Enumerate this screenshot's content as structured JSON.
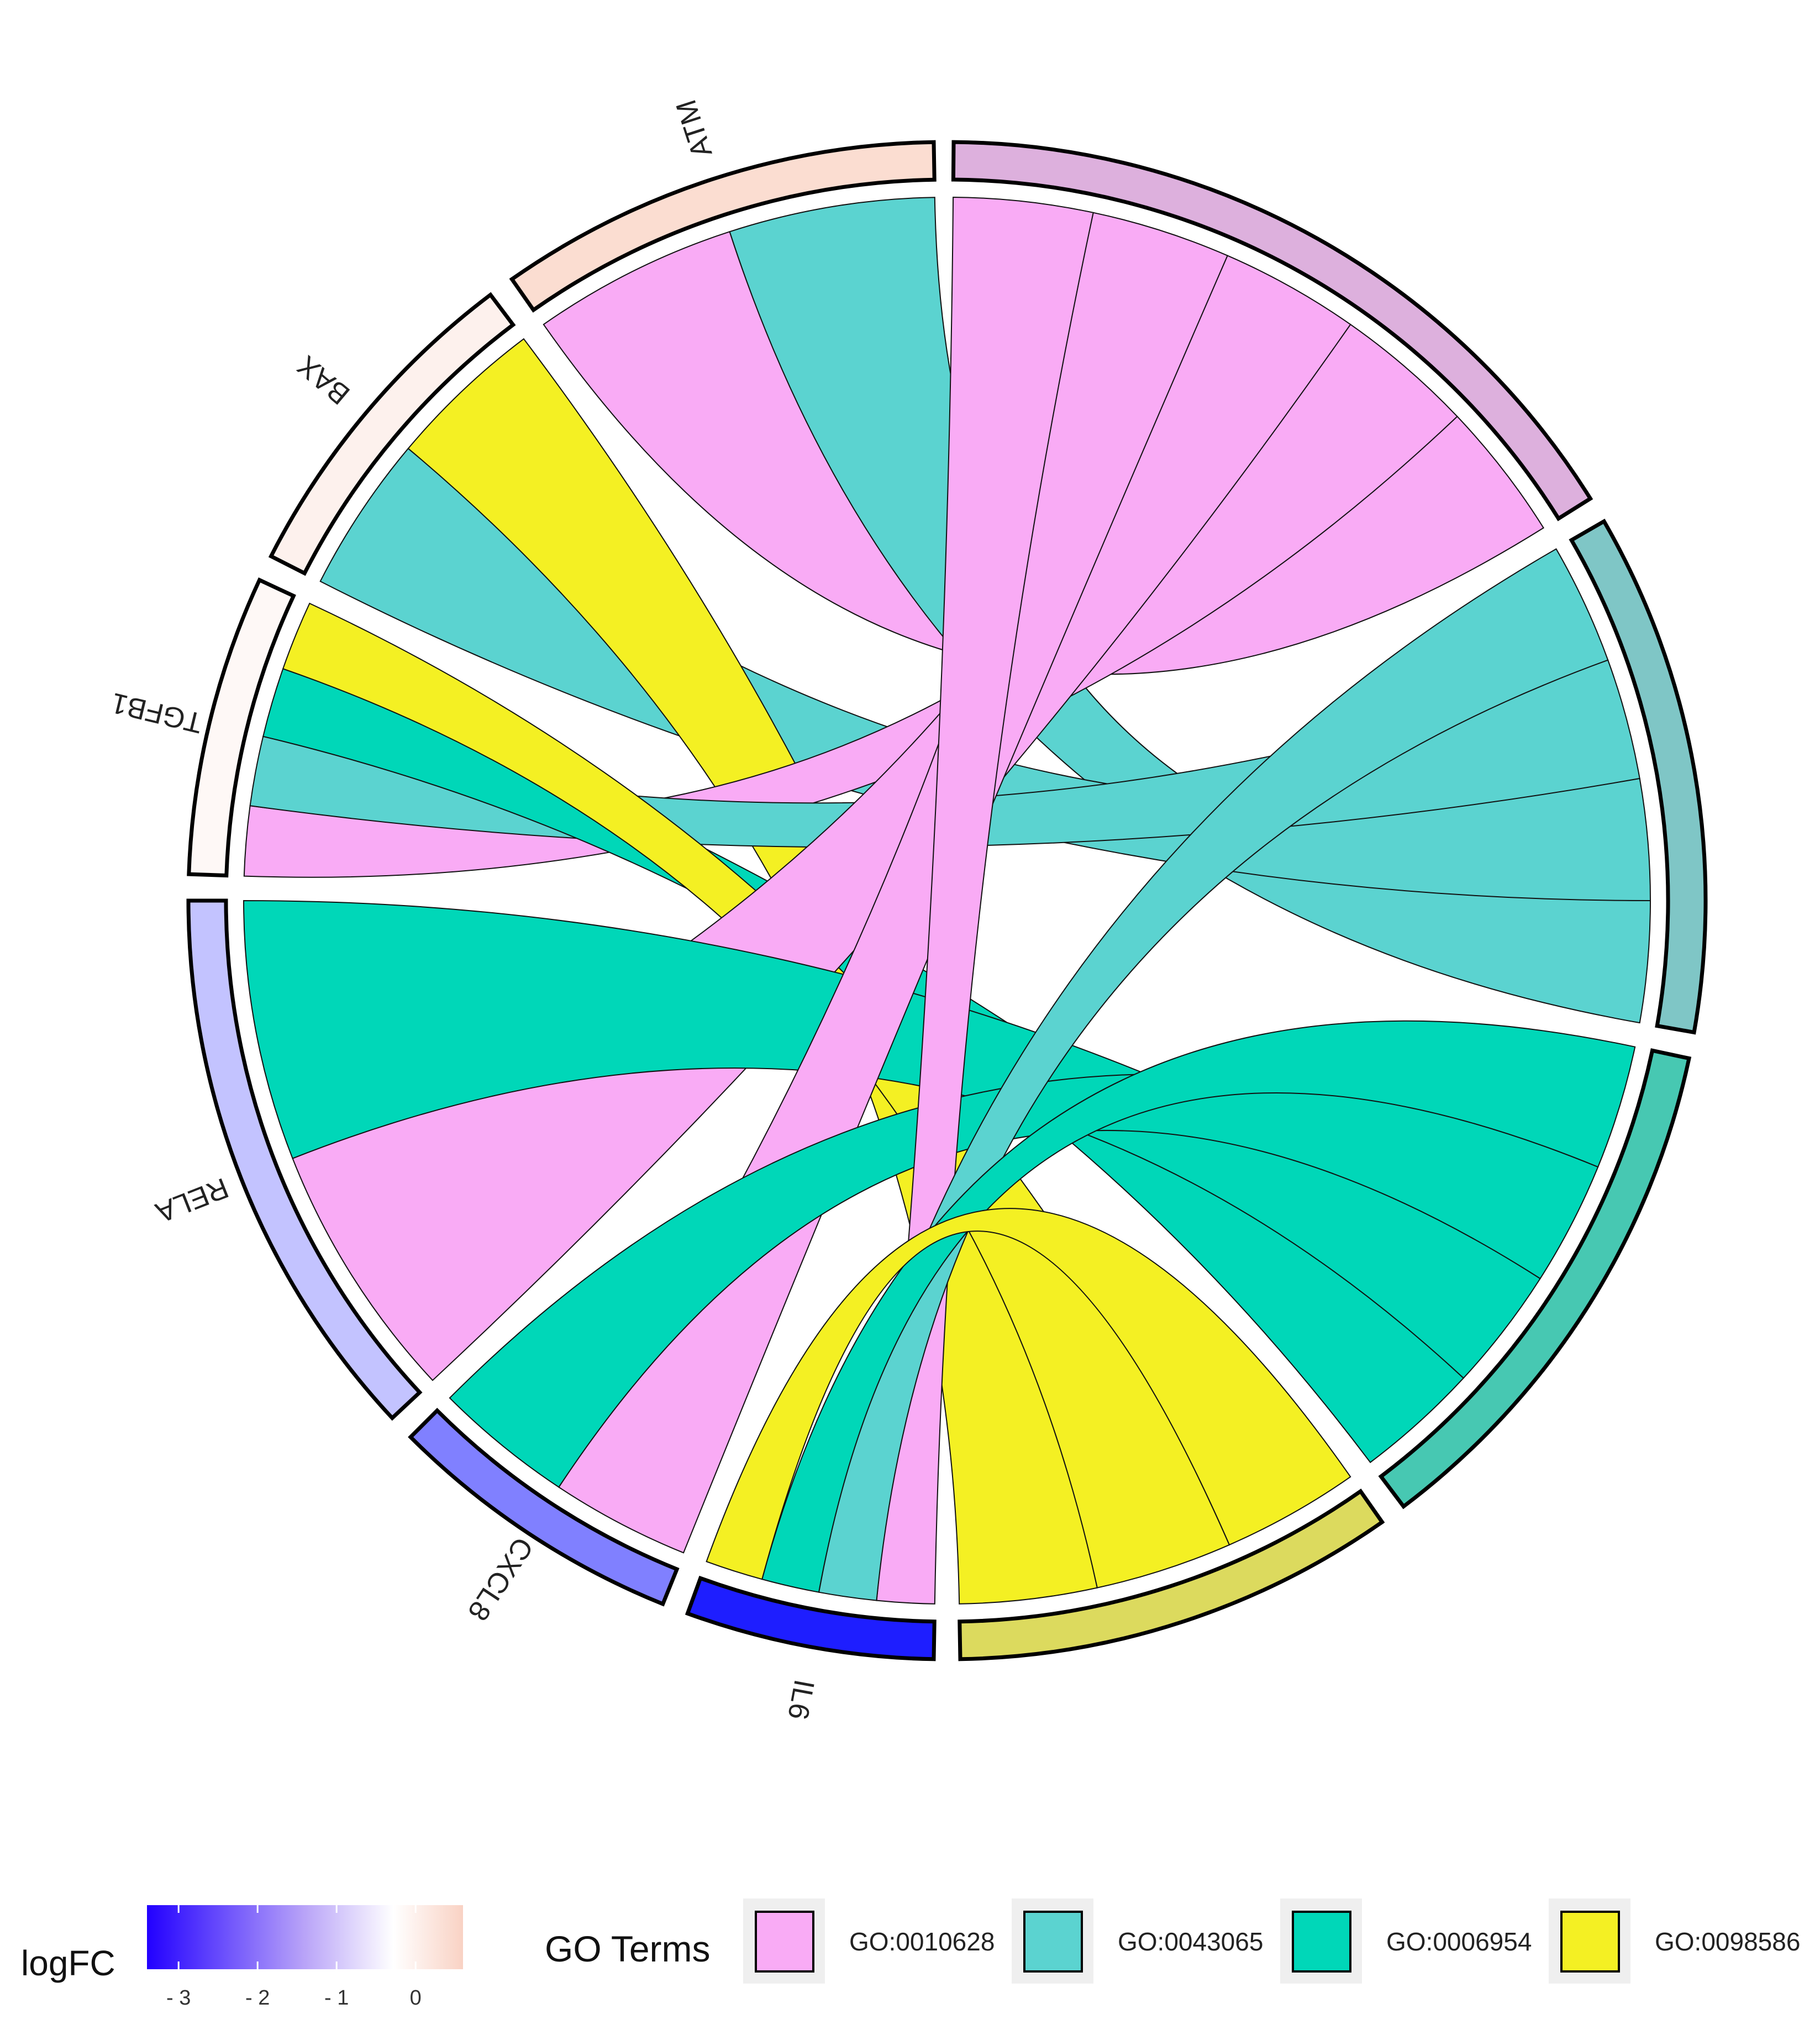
{
  "chart_data": {
    "type": "chord",
    "genes": [
      {
        "name": "ATM",
        "logFC": 0.5
      },
      {
        "name": "BAX",
        "logFC": 0.2
      },
      {
        "name": "TGFB1",
        "logFC": 0.1
      },
      {
        "name": "RELA",
        "logFC": -0.8
      },
      {
        "name": "CXCL8",
        "logFC": -1.7
      },
      {
        "name": "IL6",
        "logFC": -3.0
      }
    ],
    "go_terms": [
      {
        "id": "GO:0010628",
        "color": "#F9ABF5",
        "arc_color": "#DDB0DD"
      },
      {
        "id": "GO:0043065",
        "color": "#5BD3D0",
        "arc_color": "#7FC6C6"
      },
      {
        "id": "GO:0006954",
        "color": "#00D7B8",
        "arc_color": "#47C8B2"
      },
      {
        "id": "GO:0098586",
        "color": "#F4F023",
        "arc_color": "#DCDA5E"
      }
    ],
    "links": [
      {
        "gene": "ATM",
        "term": "GO:0010628"
      },
      {
        "gene": "ATM",
        "term": "GO:0043065"
      },
      {
        "gene": "BAX",
        "term": "GO:0043065"
      },
      {
        "gene": "BAX",
        "term": "GO:0098586"
      },
      {
        "gene": "TGFB1",
        "term": "GO:0010628"
      },
      {
        "gene": "TGFB1",
        "term": "GO:0043065"
      },
      {
        "gene": "TGFB1",
        "term": "GO:0006954"
      },
      {
        "gene": "TGFB1",
        "term": "GO:0098586"
      },
      {
        "gene": "RELA",
        "term": "GO:0010628"
      },
      {
        "gene": "RELA",
        "term": "GO:0006954"
      },
      {
        "gene": "CXCL8",
        "term": "GO:0010628"
      },
      {
        "gene": "CXCL8",
        "term": "GO:0006954"
      },
      {
        "gene": "IL6",
        "term": "GO:0010628"
      },
      {
        "gene": "IL6",
        "term": "GO:0043065"
      },
      {
        "gene": "IL6",
        "term": "GO:0006954"
      },
      {
        "gene": "IL6",
        "term": "GO:0098586"
      }
    ],
    "logFC_scale": {
      "min": -3.4,
      "max": 0.6,
      "ticks": [
        -3,
        -2,
        -1,
        0
      ],
      "low_color": "#0000FF",
      "mid_color": "#FFFFFF",
      "high_color": "#FAD6C8"
    }
  },
  "legend": {
    "logfc_title": "logFC",
    "go_title": "GO Terms",
    "tick_labels": [
      "- 3",
      "- 2",
      "- 1",
      "0"
    ]
  }
}
